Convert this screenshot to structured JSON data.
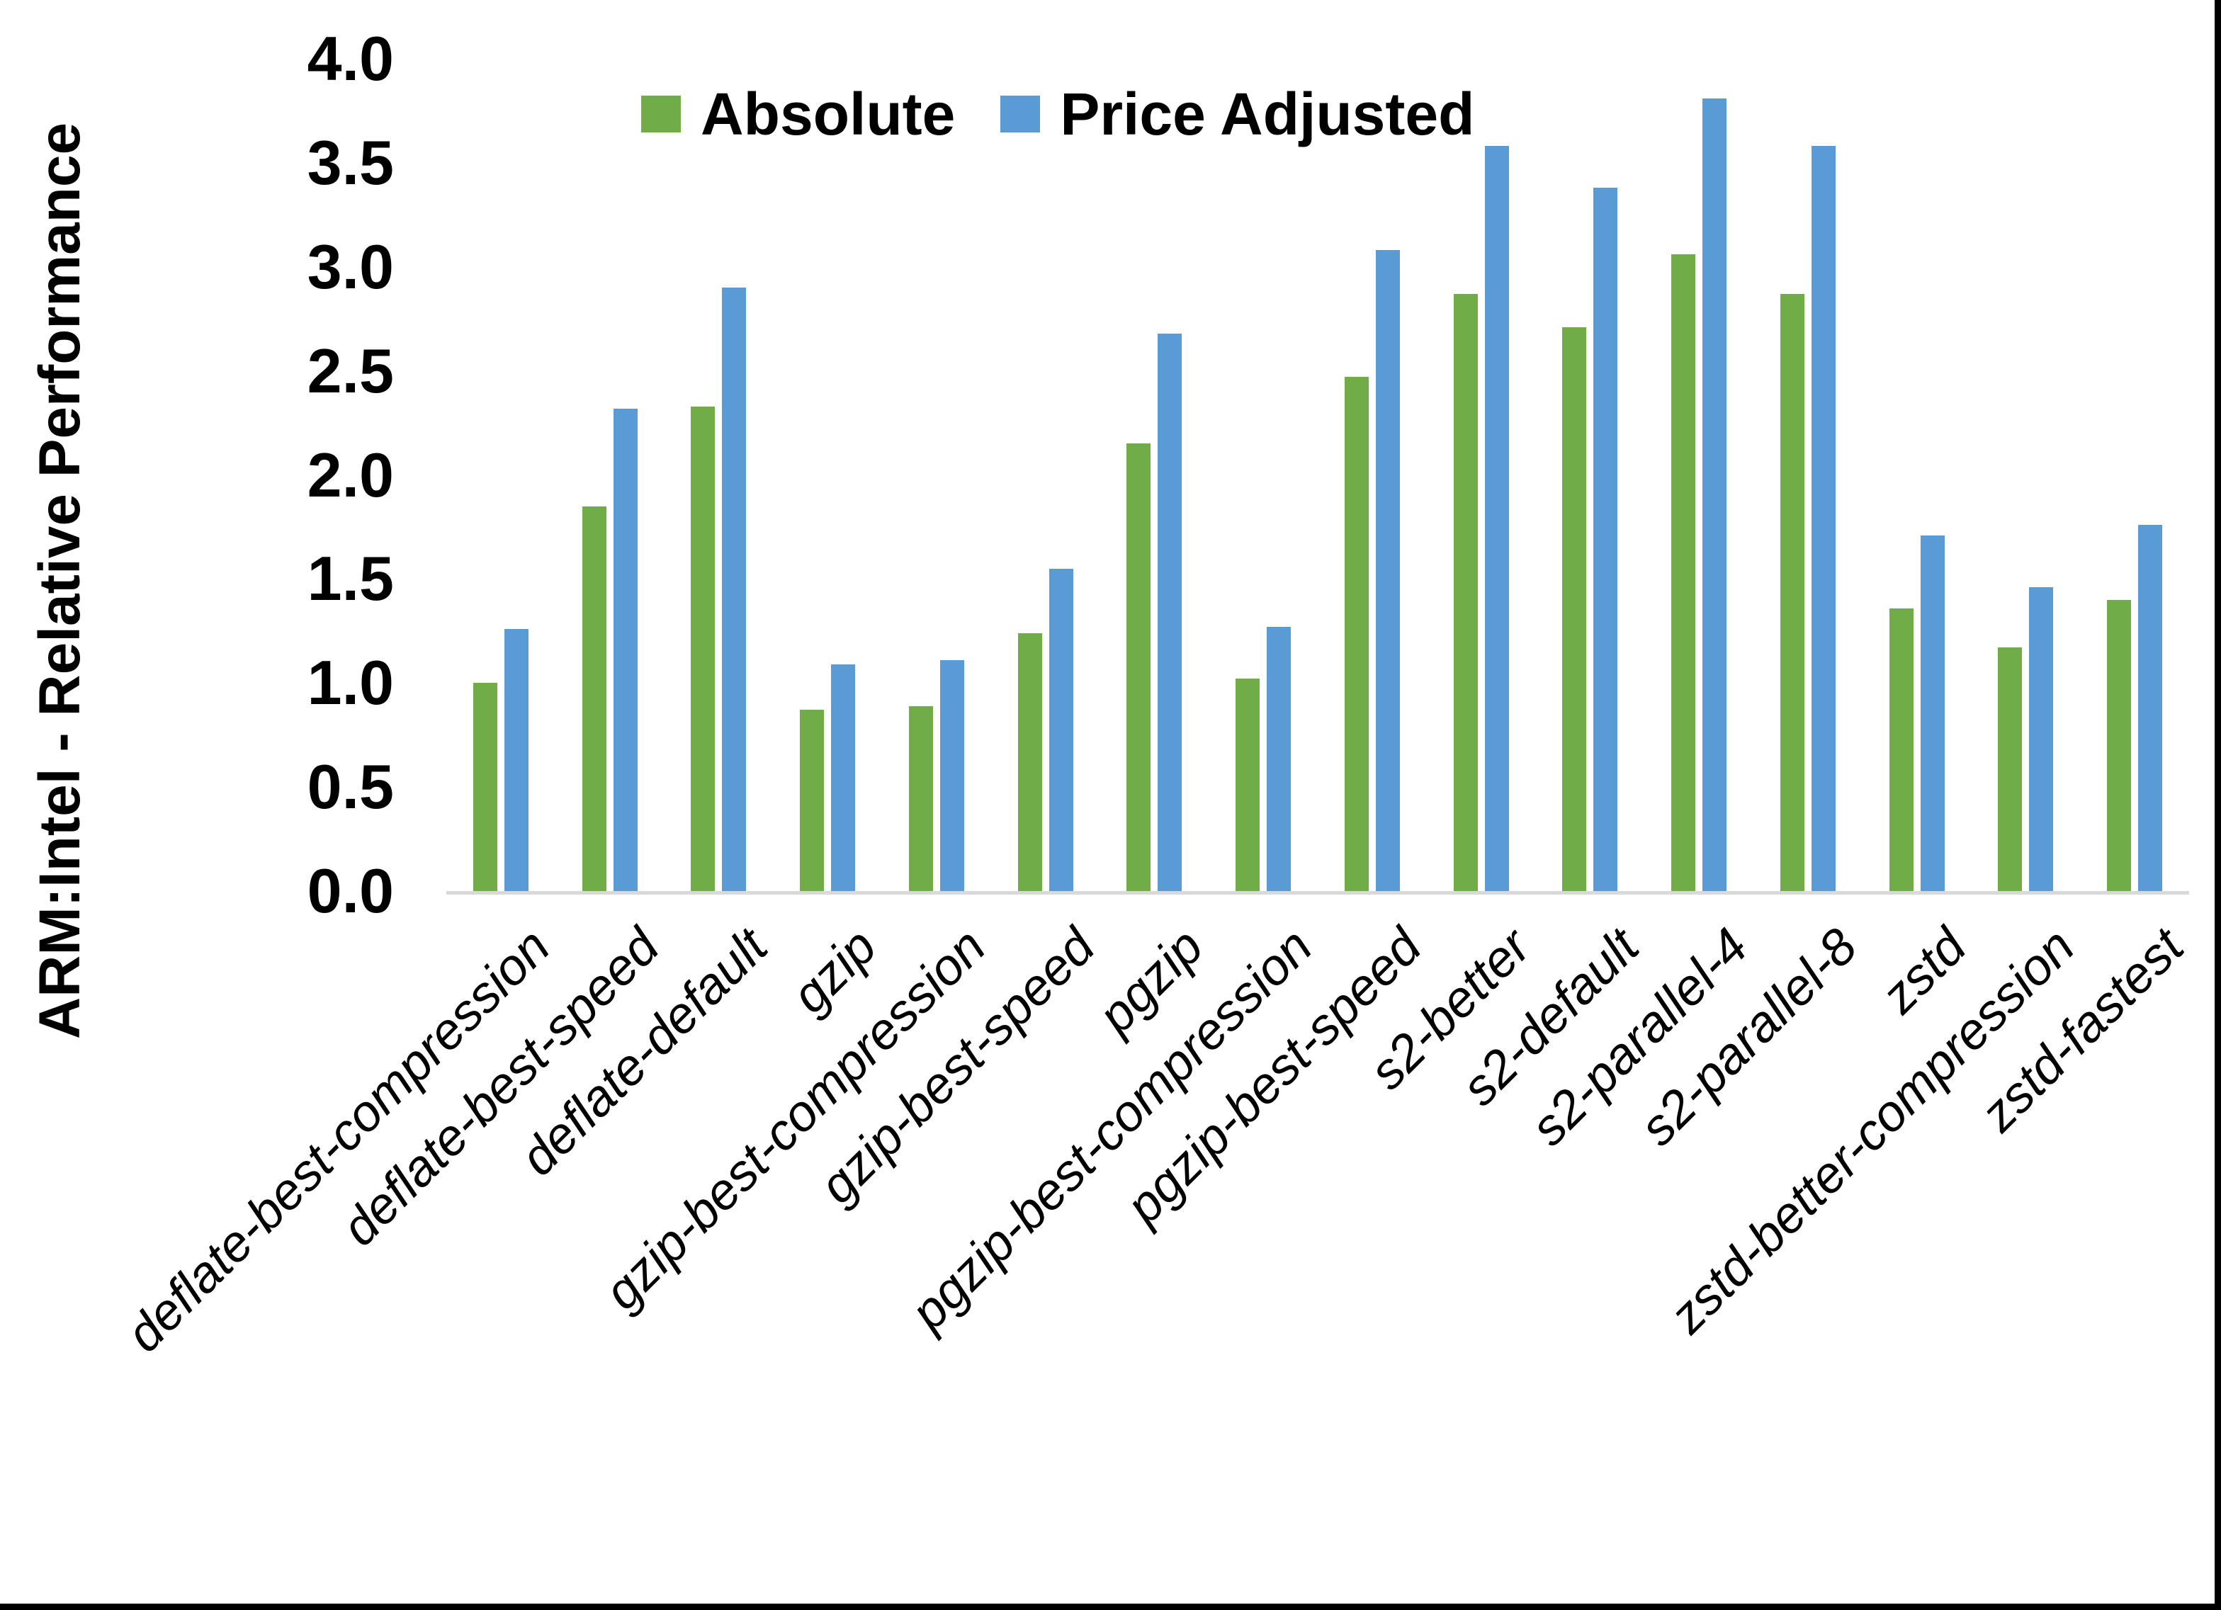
{
  "chart_data": {
    "type": "bar",
    "title": "",
    "xlabel": "",
    "ylabel": "ARM:Intel - Relative Performance",
    "ylim": [
      0.0,
      4.0
    ],
    "ytick_step": 0.5,
    "yticks": [
      0.0,
      0.5,
      1.0,
      1.5,
      2.0,
      2.5,
      3.0,
      3.5,
      4.0
    ],
    "grid": false,
    "legend_position": "top-center",
    "categories": [
      "deflate-best-compression",
      "deflate-best-speed",
      "deflate-default",
      "gzip",
      "gzip-best-compression",
      "gzip-best-speed",
      "pgzip",
      "pgzip-best-compression",
      "pgzip-best-speed",
      "s2-better",
      "s2-default",
      "s2-parallel-4",
      "s2-parallel-8",
      "zstd",
      "zstd-better-compression",
      "zstd-fastest"
    ],
    "series": [
      {
        "name": "Absolute",
        "color": "#70AD47",
        "values": [
          1.0,
          1.85,
          2.33,
          0.87,
          0.89,
          1.24,
          2.15,
          1.02,
          2.47,
          2.87,
          2.71,
          3.06,
          2.87,
          1.36,
          1.17,
          1.4
        ]
      },
      {
        "name": "Price Adjusted",
        "color": "#5B9BD5",
        "values": [
          1.26,
          2.32,
          2.9,
          1.09,
          1.11,
          1.55,
          2.68,
          1.27,
          3.08,
          3.58,
          3.38,
          3.81,
          3.58,
          1.71,
          1.46,
          1.76
        ]
      }
    ]
  },
  "axis": {
    "line_color": "#D9D9D9",
    "text_color": "#000000"
  },
  "frame": {
    "border_color": "#000000"
  }
}
